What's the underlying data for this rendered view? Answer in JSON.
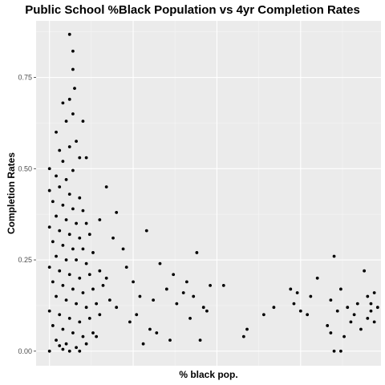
{
  "chart_data": {
    "type": "scatter",
    "title": "Public School %Black Population vs 4yr Completion Rates",
    "xlabel": "% black pop.",
    "ylabel": "Completion Rates",
    "xlim": [
      -0.04,
      0.99
    ],
    "ylim": [
      -0.04,
      0.905
    ],
    "yticks": [
      0.0,
      0.25,
      0.5,
      0.75
    ],
    "ytick_labels": [
      "0.00",
      "0.25",
      "0.50",
      "0.75"
    ],
    "x_ticks_labeled": false,
    "grid": true,
    "point_color": "#000000",
    "panel_color": "#ebebeb",
    "points": [
      [
        0.06,
        0.868
      ],
      [
        0.07,
        0.822
      ],
      [
        0.07,
        0.772
      ],
      [
        0.075,
        0.72
      ],
      [
        0.06,
        0.69
      ],
      [
        0.04,
        0.68
      ],
      [
        0.07,
        0.65
      ],
      [
        0.05,
        0.63
      ],
      [
        0.02,
        0.6
      ],
      [
        0.08,
        0.575
      ],
      [
        0.06,
        0.56
      ],
      [
        0.03,
        0.55
      ],
      [
        0.09,
        0.53
      ],
      [
        0.04,
        0.52
      ],
      [
        0.0,
        0.5
      ],
      [
        0.07,
        0.495
      ],
      [
        0.02,
        0.48
      ],
      [
        0.05,
        0.47
      ],
      [
        0.1,
        0.63
      ],
      [
        0.11,
        0.53
      ],
      [
        0.0,
        0.44
      ],
      [
        0.03,
        0.45
      ],
      [
        0.06,
        0.43
      ],
      [
        0.09,
        0.42
      ],
      [
        0.01,
        0.41
      ],
      [
        0.04,
        0.4
      ],
      [
        0.07,
        0.39
      ],
      [
        0.1,
        0.385
      ],
      [
        0.02,
        0.37
      ],
      [
        0.05,
        0.36
      ],
      [
        0.08,
        0.35
      ],
      [
        0.11,
        0.35
      ],
      [
        0.0,
        0.34
      ],
      [
        0.03,
        0.33
      ],
      [
        0.06,
        0.32
      ],
      [
        0.09,
        0.31
      ],
      [
        0.12,
        0.32
      ],
      [
        0.01,
        0.3
      ],
      [
        0.04,
        0.29
      ],
      [
        0.07,
        0.28
      ],
      [
        0.1,
        0.28
      ],
      [
        0.13,
        0.27
      ],
      [
        0.02,
        0.26
      ],
      [
        0.05,
        0.25
      ],
      [
        0.08,
        0.25
      ],
      [
        0.11,
        0.24
      ],
      [
        0.0,
        0.23
      ],
      [
        0.03,
        0.22
      ],
      [
        0.06,
        0.21
      ],
      [
        0.09,
        0.2
      ],
      [
        0.12,
        0.21
      ],
      [
        0.15,
        0.22
      ],
      [
        0.01,
        0.19
      ],
      [
        0.04,
        0.18
      ],
      [
        0.07,
        0.17
      ],
      [
        0.1,
        0.16
      ],
      [
        0.13,
        0.17
      ],
      [
        0.16,
        0.18
      ],
      [
        0.02,
        0.15
      ],
      [
        0.05,
        0.14
      ],
      [
        0.08,
        0.13
      ],
      [
        0.11,
        0.12
      ],
      [
        0.14,
        0.13
      ],
      [
        0.0,
        0.11
      ],
      [
        0.03,
        0.1
      ],
      [
        0.06,
        0.09
      ],
      [
        0.09,
        0.08
      ],
      [
        0.12,
        0.09
      ],
      [
        0.15,
        0.1
      ],
      [
        0.01,
        0.07
      ],
      [
        0.04,
        0.06
      ],
      [
        0.07,
        0.05
      ],
      [
        0.1,
        0.04
      ],
      [
        0.13,
        0.05
      ],
      [
        0.02,
        0.03
      ],
      [
        0.05,
        0.02
      ],
      [
        0.08,
        0.01
      ],
      [
        0.11,
        0.02
      ],
      [
        0.0,
        0.0
      ],
      [
        0.04,
        0.005
      ],
      [
        0.06,
        0.0
      ],
      [
        0.03,
        0.015
      ],
      [
        0.09,
        0.0
      ],
      [
        0.14,
        0.04
      ],
      [
        0.17,
        0.2
      ],
      [
        0.18,
        0.14
      ],
      [
        0.2,
        0.12
      ],
      [
        0.22,
        0.28
      ],
      [
        0.24,
        0.08
      ],
      [
        0.25,
        0.19
      ],
      [
        0.27,
        0.15
      ],
      [
        0.29,
        0.33
      ],
      [
        0.3,
        0.06
      ],
      [
        0.31,
        0.14
      ],
      [
        0.33,
        0.24
      ],
      [
        0.35,
        0.17
      ],
      [
        0.36,
        0.03
      ],
      [
        0.38,
        0.13
      ],
      [
        0.4,
        0.16
      ],
      [
        0.42,
        0.09
      ],
      [
        0.44,
        0.27
      ],
      [
        0.45,
        0.03
      ],
      [
        0.47,
        0.11
      ],
      [
        0.2,
        0.38
      ],
      [
        0.17,
        0.45
      ],
      [
        0.15,
        0.36
      ],
      [
        0.19,
        0.31
      ],
      [
        0.23,
        0.23
      ],
      [
        0.26,
        0.1
      ],
      [
        0.28,
        0.02
      ],
      [
        0.32,
        0.05
      ],
      [
        0.37,
        0.21
      ],
      [
        0.41,
        0.19
      ],
      [
        0.43,
        0.15
      ],
      [
        0.46,
        0.12
      ],
      [
        0.48,
        0.18
      ],
      [
        0.52,
        0.18
      ],
      [
        0.58,
        0.04
      ],
      [
        0.59,
        0.06
      ],
      [
        0.64,
        0.1
      ],
      [
        0.67,
        0.12
      ],
      [
        0.72,
        0.17
      ],
      [
        0.73,
        0.13
      ],
      [
        0.74,
        0.16
      ],
      [
        0.75,
        0.11
      ],
      [
        0.77,
        0.1
      ],
      [
        0.78,
        0.15
      ],
      [
        0.8,
        0.2
      ],
      [
        0.85,
        0.26
      ],
      [
        0.84,
        0.14
      ],
      [
        0.86,
        0.11
      ],
      [
        0.87,
        0.17
      ],
      [
        0.83,
        0.07
      ],
      [
        0.84,
        0.05
      ],
      [
        0.85,
        0.0
      ],
      [
        0.87,
        0.0
      ],
      [
        0.88,
        0.04
      ],
      [
        0.89,
        0.12
      ],
      [
        0.91,
        0.1
      ],
      [
        0.92,
        0.13
      ],
      [
        0.94,
        0.22
      ],
      [
        0.95,
        0.15
      ],
      [
        0.95,
        0.09
      ],
      [
        0.96,
        0.11
      ],
      [
        0.97,
        0.16
      ],
      [
        0.97,
        0.08
      ],
      [
        0.93,
        0.06
      ],
      [
        0.9,
        0.08
      ],
      [
        0.98,
        0.12
      ],
      [
        0.96,
        0.13
      ]
    ]
  }
}
